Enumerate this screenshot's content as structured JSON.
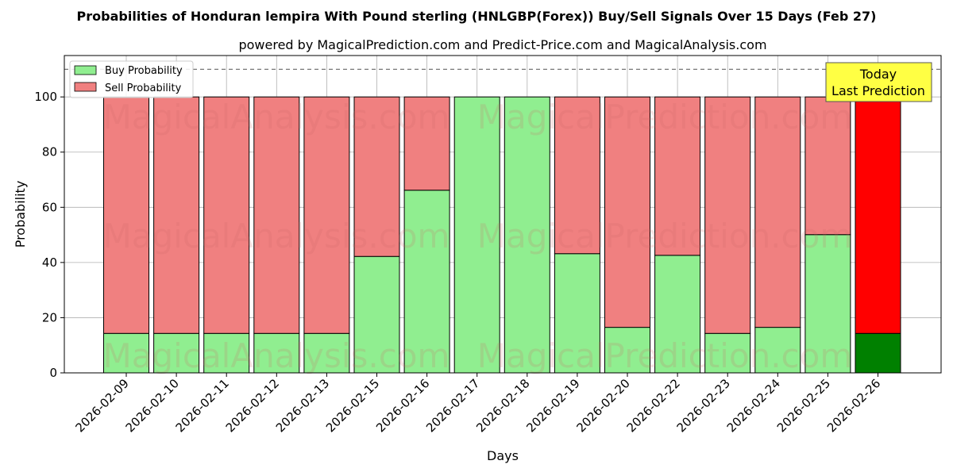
{
  "title": "Probabilities of Honduran lempira With Pound sterling (HNLGBP(Forex)) Buy/Sell Signals Over 15 Days (Feb 27)",
  "subtitle": "powered by MagicalPrediction.com and Predict-Price.com and MagicalAnalysis.com",
  "watermarks": [
    "MagicalAnalysis.com",
    "MagicalPrediction.com"
  ],
  "annotation": {
    "line1": "Today",
    "line2": "Last Prediction",
    "color": "#ffff44"
  },
  "colors": {
    "buy": "#90ee90",
    "sell": "#f08080",
    "buy_today": "#008000",
    "sell_today": "#ff0000"
  },
  "chart_data": {
    "type": "bar",
    "stacked": true,
    "xlabel": "Days",
    "ylabel": "Probability",
    "ylim": [
      0,
      115
    ],
    "yticks": [
      0,
      20,
      40,
      60,
      80,
      100
    ],
    "reference_line": 110,
    "grid": true,
    "legend_position": "top-left",
    "categories": [
      "2026-02-09",
      "2026-02-10",
      "2026-02-11",
      "2026-02-12",
      "2026-02-13",
      "2026-02-15",
      "2026-02-16",
      "2026-02-17",
      "2026-02-18",
      "2026-02-19",
      "2026-02-20",
      "2026-02-22",
      "2026-02-23",
      "2026-02-24",
      "2026-02-25",
      "2026-02-26"
    ],
    "series": [
      {
        "name": "Buy Probability",
        "values": [
          14.3,
          14.3,
          14.3,
          14.3,
          14.3,
          42.2,
          66.2,
          100,
          100,
          43.2,
          16.5,
          42.6,
          14.3,
          16.5,
          50.1,
          14.3
        ]
      },
      {
        "name": "Sell Probability",
        "values": [
          85.7,
          85.7,
          85.7,
          85.7,
          85.7,
          57.8,
          33.8,
          0,
          0,
          56.8,
          83.5,
          57.4,
          85.7,
          83.5,
          49.9,
          85.7
        ]
      }
    ]
  }
}
